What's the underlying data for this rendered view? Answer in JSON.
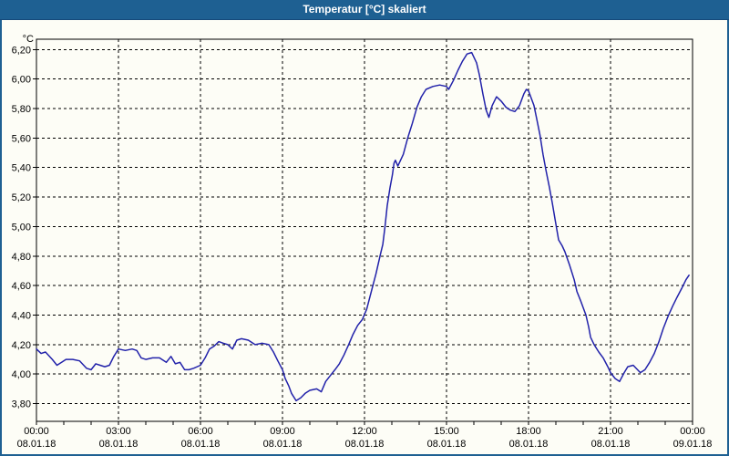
{
  "window": {
    "title": "Temperatur [°C] skaliert"
  },
  "colors": {
    "titlebar_bg": "#1e6092",
    "titlebar_text": "#ffffff",
    "panel_bg": "#fdfdf6",
    "plot_bg": "#fdfdf6",
    "grid": "#000000",
    "axis": "#000000",
    "tick_text": "#000000",
    "series_line": "#2222aa"
  },
  "chart_data": {
    "type": "line",
    "title": "Temperatur [°C] skaliert",
    "xlabel": "",
    "ylabel": "°C",
    "legend": "none",
    "grid": "dashed",
    "ylim": [
      3.68,
      6.27
    ],
    "xlim_hours": [
      0,
      24
    ],
    "y_ticks": [
      {
        "value": 3.8,
        "label": "3,80"
      },
      {
        "value": 4.0,
        "label": "4,00"
      },
      {
        "value": 4.2,
        "label": "4,20"
      },
      {
        "value": 4.4,
        "label": "4,40"
      },
      {
        "value": 4.6,
        "label": "4,60"
      },
      {
        "value": 4.8,
        "label": "4,80"
      },
      {
        "value": 5.0,
        "label": "5,00"
      },
      {
        "value": 5.2,
        "label": "5,20"
      },
      {
        "value": 5.4,
        "label": "5,40"
      },
      {
        "value": 5.6,
        "label": "5,60"
      },
      {
        "value": 5.8,
        "label": "5,80"
      },
      {
        "value": 6.0,
        "label": "6,00"
      },
      {
        "value": 6.2,
        "label": "6,20"
      }
    ],
    "x_major_ticks": [
      {
        "hours": 0,
        "time": "00:00",
        "date": "08.01.18"
      },
      {
        "hours": 3,
        "time": "03:00",
        "date": "08.01.18"
      },
      {
        "hours": 6,
        "time": "06:00",
        "date": "08.01.18"
      },
      {
        "hours": 9,
        "time": "09:00",
        "date": "08.01.18"
      },
      {
        "hours": 12,
        "time": "12:00",
        "date": "08.01.18"
      },
      {
        "hours": 15,
        "time": "15:00",
        "date": "08.01.18"
      },
      {
        "hours": 18,
        "time": "18:00",
        "date": "08.01.18"
      },
      {
        "hours": 21,
        "time": "21:00",
        "date": "08.01.18"
      },
      {
        "hours": 24,
        "time": "00:00",
        "date": "09.01.18"
      }
    ],
    "x_minor_tick_every_hours": 1,
    "series": [
      {
        "name": "Temperatur",
        "color": "#2222aa",
        "points": [
          [
            0,
            4.17
          ],
          [
            0.17,
            4.14
          ],
          [
            0.33,
            4.15
          ],
          [
            0.58,
            4.1
          ],
          [
            0.75,
            4.06
          ],
          [
            0.92,
            4.08
          ],
          [
            1.08,
            4.1
          ],
          [
            1.33,
            4.1
          ],
          [
            1.58,
            4.09
          ],
          [
            1.83,
            4.04
          ],
          [
            2.0,
            4.03
          ],
          [
            2.17,
            4.07
          ],
          [
            2.33,
            4.06
          ],
          [
            2.5,
            4.05
          ],
          [
            2.67,
            4.06
          ],
          [
            2.83,
            4.12
          ],
          [
            3.0,
            4.17
          ],
          [
            3.25,
            4.16
          ],
          [
            3.5,
            4.17
          ],
          [
            3.67,
            4.16
          ],
          [
            3.83,
            4.11
          ],
          [
            4.0,
            4.1
          ],
          [
            4.25,
            4.11
          ],
          [
            4.5,
            4.11
          ],
          [
            4.75,
            4.08
          ],
          [
            4.92,
            4.12
          ],
          [
            5.08,
            4.07
          ],
          [
            5.25,
            4.08
          ],
          [
            5.42,
            4.03
          ],
          [
            5.58,
            4.03
          ],
          [
            5.75,
            4.04
          ],
          [
            6.0,
            4.06
          ],
          [
            6.17,
            4.11
          ],
          [
            6.33,
            4.17
          ],
          [
            6.5,
            4.19
          ],
          [
            6.67,
            4.22
          ],
          [
            6.83,
            4.21
          ],
          [
            7.0,
            4.2
          ],
          [
            7.17,
            4.17
          ],
          [
            7.33,
            4.23
          ],
          [
            7.5,
            4.24
          ],
          [
            7.75,
            4.23
          ],
          [
            8.0,
            4.2
          ],
          [
            8.25,
            4.21
          ],
          [
            8.5,
            4.2
          ],
          [
            8.67,
            4.15
          ],
          [
            8.83,
            4.09
          ],
          [
            9.0,
            4.03
          ],
          [
            9.1,
            3.97
          ],
          [
            9.23,
            3.92
          ],
          [
            9.33,
            3.87
          ],
          [
            9.5,
            3.82
          ],
          [
            9.67,
            3.84
          ],
          [
            9.83,
            3.87
          ],
          [
            10.0,
            3.89
          ],
          [
            10.25,
            3.9
          ],
          [
            10.42,
            3.88
          ],
          [
            10.58,
            3.95
          ],
          [
            10.75,
            3.99
          ],
          [
            10.92,
            4.03
          ],
          [
            11.08,
            4.07
          ],
          [
            11.25,
            4.13
          ],
          [
            11.42,
            4.2
          ],
          [
            11.58,
            4.27
          ],
          [
            11.75,
            4.33
          ],
          [
            11.92,
            4.37
          ],
          [
            12.08,
            4.44
          ],
          [
            12.25,
            4.56
          ],
          [
            12.42,
            4.68
          ],
          [
            12.58,
            4.81
          ],
          [
            12.67,
            4.88
          ],
          [
            12.75,
            5.0
          ],
          [
            12.83,
            5.14
          ],
          [
            12.93,
            5.26
          ],
          [
            13.02,
            5.35
          ],
          [
            13.08,
            5.43
          ],
          [
            13.13,
            5.45
          ],
          [
            13.22,
            5.41
          ],
          [
            13.42,
            5.49
          ],
          [
            13.58,
            5.6
          ],
          [
            13.75,
            5.7
          ],
          [
            13.92,
            5.81
          ],
          [
            14.08,
            5.88
          ],
          [
            14.25,
            5.93
          ],
          [
            14.5,
            5.95
          ],
          [
            14.75,
            5.96
          ],
          [
            15.0,
            5.95
          ],
          [
            15.08,
            5.93
          ],
          [
            15.25,
            5.99
          ],
          [
            15.42,
            6.06
          ],
          [
            15.58,
            6.12
          ],
          [
            15.75,
            6.17
          ],
          [
            15.92,
            6.18
          ],
          [
            16.1,
            6.11
          ],
          [
            16.2,
            6.03
          ],
          [
            16.33,
            5.9
          ],
          [
            16.45,
            5.79
          ],
          [
            16.55,
            5.74
          ],
          [
            16.67,
            5.82
          ],
          [
            16.83,
            5.88
          ],
          [
            17.0,
            5.85
          ],
          [
            17.17,
            5.81
          ],
          [
            17.33,
            5.79
          ],
          [
            17.5,
            5.78
          ],
          [
            17.67,
            5.82
          ],
          [
            17.83,
            5.9
          ],
          [
            17.92,
            5.93
          ],
          [
            18.0,
            5.92
          ],
          [
            18.2,
            5.82
          ],
          [
            18.3,
            5.73
          ],
          [
            18.42,
            5.62
          ],
          [
            18.53,
            5.49
          ],
          [
            18.64,
            5.38
          ],
          [
            18.76,
            5.27
          ],
          [
            18.87,
            5.16
          ],
          [
            18.97,
            5.05
          ],
          [
            19.1,
            4.91
          ],
          [
            19.23,
            4.87
          ],
          [
            19.33,
            4.83
          ],
          [
            19.5,
            4.74
          ],
          [
            19.67,
            4.64
          ],
          [
            19.77,
            4.56
          ],
          [
            19.9,
            4.5
          ],
          [
            20.0,
            4.45
          ],
          [
            20.1,
            4.4
          ],
          [
            20.2,
            4.32
          ],
          [
            20.27,
            4.25
          ],
          [
            20.4,
            4.2
          ],
          [
            20.57,
            4.15
          ],
          [
            20.73,
            4.11
          ],
          [
            20.9,
            4.05
          ],
          [
            21.0,
            4.01
          ],
          [
            21.17,
            3.97
          ],
          [
            21.33,
            3.95
          ],
          [
            21.5,
            4.01
          ],
          [
            21.63,
            4.05
          ],
          [
            21.83,
            4.06
          ],
          [
            22.09,
            4.01
          ],
          [
            22.26,
            4.03
          ],
          [
            22.43,
            4.08
          ],
          [
            22.6,
            4.14
          ],
          [
            22.77,
            4.22
          ],
          [
            22.93,
            4.31
          ],
          [
            23.1,
            4.39
          ],
          [
            23.27,
            4.46
          ],
          [
            23.43,
            4.52
          ],
          [
            23.6,
            4.58
          ],
          [
            23.76,
            4.64
          ],
          [
            23.87,
            4.67
          ]
        ]
      }
    ]
  }
}
